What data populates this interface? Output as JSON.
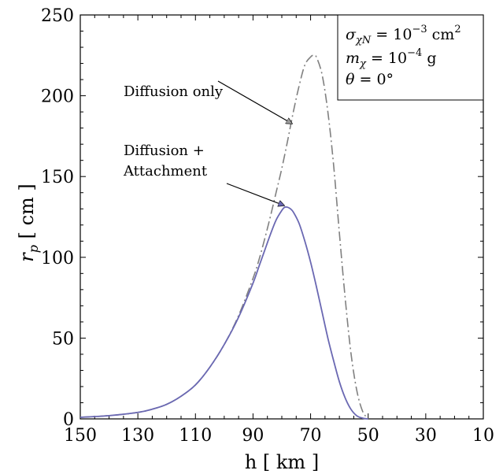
{
  "chart_data": {
    "type": "line",
    "xlabel": "h [ km ]",
    "ylabel": "r_p [ cm ]",
    "xlim": [
      150,
      10
    ],
    "ylim": [
      0,
      250
    ],
    "xticks": [
      "150",
      "130",
      "110",
      "90",
      "70",
      "50",
      "30",
      "10"
    ],
    "yticks": [
      "0",
      "50",
      "100",
      "150",
      "200",
      "250"
    ],
    "x_reversed": true,
    "legend_box": {
      "position": "top-right",
      "lines": [
        {
          "main": "σ",
          "sub": "χN",
          "rest": " = 10",
          "sup": "−3",
          "tail": " cm",
          "sup2": "2"
        },
        {
          "main": "m",
          "sub": "χ",
          "rest": " = 10",
          "sup": "−4",
          "tail": " g",
          "sup2": ""
        },
        {
          "main": "θ",
          "sub": "",
          "rest": " = 0°",
          "sup": "",
          "tail": "",
          "sup2": ""
        }
      ]
    },
    "annotations": [
      {
        "text": "Diffusion only",
        "series": "Diffusion only"
      },
      {
        "text": "Diffusion +",
        "series": "Diffusion + Attachment"
      },
      {
        "text": "Attachment",
        "series": "Diffusion + Attachment"
      }
    ],
    "series": [
      {
        "name": "Diffusion only",
        "color": "#808080",
        "dash": "dash-dot",
        "x": [
          150,
          140,
          130,
          125,
          120,
          115,
          110,
          105,
          100,
          95,
          90,
          88,
          86,
          84,
          82,
          80,
          78,
          76,
          74,
          72,
          70,
          69,
          68,
          66,
          64,
          62,
          60,
          58,
          56,
          54,
          52,
          50
        ],
        "y": [
          1,
          2,
          4,
          6,
          9,
          14,
          21,
          32,
          46,
          64,
          87,
          98,
          111,
          125,
          140,
          155,
          172,
          190,
          206,
          219,
          224,
          225,
          224,
          213,
          190,
          157,
          115,
          75,
          41,
          18,
          5,
          0
        ]
      },
      {
        "name": "Diffusion + Attachment",
        "color": "#6a68b2",
        "dash": "solid",
        "x": [
          150,
          140,
          130,
          125,
          120,
          115,
          110,
          105,
          100,
          95,
          90,
          88,
          86,
          84,
          82,
          80,
          79,
          78,
          77,
          76,
          74,
          72,
          70,
          68,
          66,
          64,
          62,
          60,
          58,
          56,
          54,
          52,
          50
        ],
        "y": [
          1,
          2,
          4,
          6,
          9,
          14,
          21,
          32,
          46,
          63,
          84,
          94,
          104,
          114,
          123,
          129,
          131,
          131,
          130,
          128,
          121,
          110,
          97,
          82,
          66,
          50,
          36,
          23,
          13,
          6,
          2,
          0.5,
          0
        ]
      }
    ]
  }
}
